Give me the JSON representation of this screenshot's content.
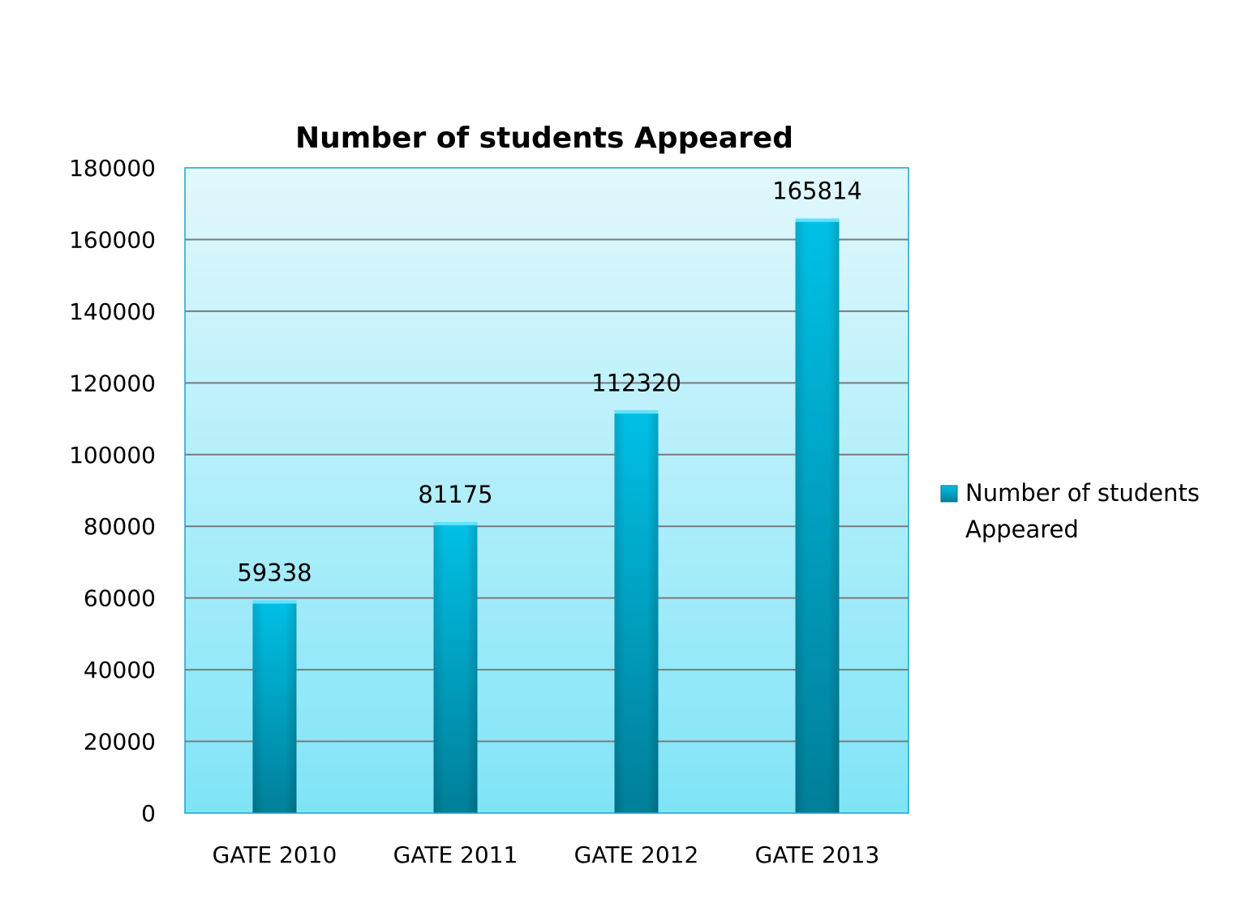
{
  "chart_data": {
    "type": "bar",
    "title": "Number of students Appeared",
    "categories": [
      "GATE 2010",
      "GATE 2011",
      "GATE 2012",
      "GATE 2013"
    ],
    "series": [
      {
        "name": "Number of students Appeared",
        "values": [
          59338,
          81175,
          112320,
          165814
        ]
      }
    ],
    "data_labels": [
      "59338",
      "81175",
      "112320",
      "165814"
    ],
    "y_ticks": [
      "0",
      "20000",
      "40000",
      "60000",
      "80000",
      "100000",
      "120000",
      "140000",
      "160000",
      "180000"
    ],
    "ylim": [
      0,
      180000
    ],
    "xlabel": "",
    "ylabel": "",
    "grid": true,
    "legend_position": "right",
    "legend_lines": [
      "Number of students",
      "Appeared"
    ],
    "colors": {
      "bar_top": "#00c0e6",
      "bar_bottom": "#007f99",
      "plot_bg_top": "#e2f8fd",
      "plot_bg_bottom": "#7fe4f7",
      "plot_border": "#1aa6c8",
      "grid": "#7a7a7a"
    }
  }
}
